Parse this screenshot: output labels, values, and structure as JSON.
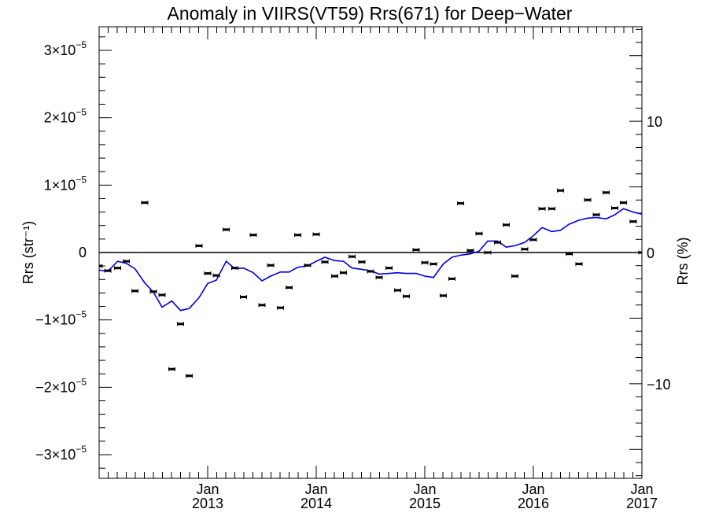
{
  "chart_data": {
    "type": "scatter",
    "title": "Anomaly in VIIRS(VT59) Rrs(671) for Deep−Water",
    "ylabel_left": "Rrs (str⁻¹)",
    "ylabel_right": "Rrs (%)",
    "xlim": [
      2012.0,
      2017.0
    ],
    "ylim": [
      -3.35e-05,
      3.35e-05
    ],
    "ylim_right_percent": [
      -17.2,
      17.2
    ],
    "grid": false,
    "legend": "none",
    "reference_line_y": 0,
    "x_ticks": [
      {
        "x": 2013,
        "line1": "Jan",
        "line2": "2013"
      },
      {
        "x": 2014,
        "line1": "Jan",
        "line2": "2014"
      },
      {
        "x": 2015,
        "line1": "Jan",
        "line2": "2015"
      },
      {
        "x": 2016,
        "line1": "Jan",
        "line2": "2016"
      },
      {
        "x": 2017,
        "line1": "Jan",
        "line2": "2017"
      }
    ],
    "y_ticks_left": [
      {
        "y": 3e-05,
        "mantissa": "3×10",
        "exp": "−5"
      },
      {
        "y": 2e-05,
        "mantissa": "2×10",
        "exp": "−5"
      },
      {
        "y": 1e-05,
        "mantissa": "1×10",
        "exp": "−5"
      },
      {
        "y": 0,
        "mantissa": "0",
        "exp": ""
      },
      {
        "y": -1e-05,
        "mantissa": "−1×10",
        "exp": "−5"
      },
      {
        "y": -2e-05,
        "mantissa": "−2×10",
        "exp": "−5"
      },
      {
        "y": -3e-05,
        "mantissa": "−3×10",
        "exp": "−5"
      }
    ],
    "y_ticks_right": [
      {
        "y": 10,
        "label": "10"
      },
      {
        "y": 0,
        "label": "0"
      },
      {
        "y": -10,
        "label": "−10"
      }
    ],
    "colors": {
      "points": "#000000",
      "trend": "#0000dd",
      "axes": "#000000"
    },
    "series": [
      {
        "kind": "points",
        "x": [
          2012.0,
          2012.08,
          2012.17,
          2012.25,
          2012.33,
          2012.42,
          2012.5,
          2012.58,
          2012.67,
          2012.75,
          2012.83,
          2012.92,
          2013.0,
          2013.08,
          2013.17,
          2013.25,
          2013.33,
          2013.42,
          2013.5,
          2013.58,
          2013.67,
          2013.75,
          2013.83,
          2013.92,
          2014.0,
          2014.08,
          2014.17,
          2014.25,
          2014.33,
          2014.42,
          2014.5,
          2014.58,
          2014.67,
          2014.75,
          2014.83,
          2014.92,
          2015.0,
          2015.08,
          2015.17,
          2015.25,
          2015.33,
          2015.42,
          2015.5,
          2015.58,
          2015.67,
          2015.75,
          2015.83,
          2015.92,
          2016.0,
          2016.08,
          2016.17,
          2016.25,
          2016.33,
          2016.42,
          2016.5,
          2016.58,
          2016.67,
          2016.75,
          2016.83,
          2016.92,
          2017.0
        ],
        "y": [
          -2e-06,
          -2.7e-06,
          -2.3e-06,
          -1.3e-06,
          -5.7e-06,
          7.4e-06,
          -5.8e-06,
          -6.3e-06,
          -1.73e-05,
          -1.06e-05,
          -1.83e-05,
          1e-06,
          -3.1e-06,
          -3.4e-06,
          3.4e-06,
          -2.3e-06,
          -6.6e-06,
          2.6e-06,
          -7.8e-06,
          -1.9e-06,
          -8.2e-06,
          -5.2e-06,
          2.6e-06,
          -1.9e-06,
          2.7e-06,
          -1.4e-06,
          -3.5e-06,
          -3e-06,
          -6e-07,
          -1.4e-06,
          -2.8e-06,
          -3.7e-06,
          -2.3e-06,
          -5.6e-06,
          -6.5e-06,
          4e-07,
          -1.5e-06,
          -1.7e-06,
          -6.4e-06,
          -3.9e-06,
          7.3e-06,
          3e-07,
          2.8e-06,
          0.0,
          1.5e-06,
          4.1e-06,
          -3.5e-06,
          5e-07,
          1.9e-06,
          6.5e-06,
          6.5e-06,
          9.2e-06,
          -2e-07,
          -1.7e-06,
          7.8e-06,
          5.6e-06,
          8.9e-06,
          6.6e-06,
          7.4e-06,
          4.6e-06,
          0.0
        ]
      },
      {
        "kind": "line",
        "x": [
          2012.0,
          2012.08,
          2012.17,
          2012.25,
          2012.33,
          2012.42,
          2012.5,
          2012.58,
          2012.67,
          2012.75,
          2012.83,
          2012.92,
          2013.0,
          2013.08,
          2013.17,
          2013.25,
          2013.33,
          2013.42,
          2013.5,
          2013.58,
          2013.67,
          2013.75,
          2013.83,
          2013.92,
          2014.0,
          2014.08,
          2014.17,
          2014.25,
          2014.33,
          2014.42,
          2014.5,
          2014.58,
          2014.67,
          2014.75,
          2014.83,
          2014.92,
          2015.0,
          2015.08,
          2015.17,
          2015.25,
          2015.33,
          2015.42,
          2015.5,
          2015.58,
          2015.67,
          2015.75,
          2015.83,
          2015.92,
          2016.0,
          2016.08,
          2016.17,
          2016.25,
          2016.33,
          2016.42,
          2016.5,
          2016.58,
          2016.67,
          2016.75,
          2016.83,
          2016.92,
          2017.0
        ],
        "y": [
          -2.6e-06,
          -2.8e-06,
          -1.3e-06,
          -1.6e-06,
          -2.4e-06,
          -4.5e-06,
          -5.9e-06,
          -8.1e-06,
          -7.2e-06,
          -8.6e-06,
          -8.3e-06,
          -6.7e-06,
          -4.6e-06,
          -4.1e-06,
          -1.3e-06,
          -2.4e-06,
          -2.3e-06,
          -3e-06,
          -4.2e-06,
          -3.5e-06,
          -2.9e-06,
          -2.9e-06,
          -2.2e-06,
          -2e-06,
          -1.3e-06,
          -7e-07,
          -1.2e-06,
          -1.3e-06,
          -2.3e-06,
          -2.5e-06,
          -2.7e-06,
          -3.2e-06,
          -3.1e-06,
          -3e-06,
          -3.1e-06,
          -3.1e-06,
          -3.5e-06,
          -3.7e-06,
          -1.7e-06,
          -7e-07,
          -4e-07,
          -2e-07,
          2e-07,
          1.7e-06,
          1.7e-06,
          8e-07,
          1e-06,
          1.5e-06,
          2.5e-06,
          3.7e-06,
          3.1e-06,
          3.3e-06,
          4.2e-06,
          4.8e-06,
          5.1e-06,
          5.2e-06,
          5e-06,
          5.6e-06,
          6.5e-06,
          6e-06,
          5.7e-06
        ]
      }
    ]
  }
}
